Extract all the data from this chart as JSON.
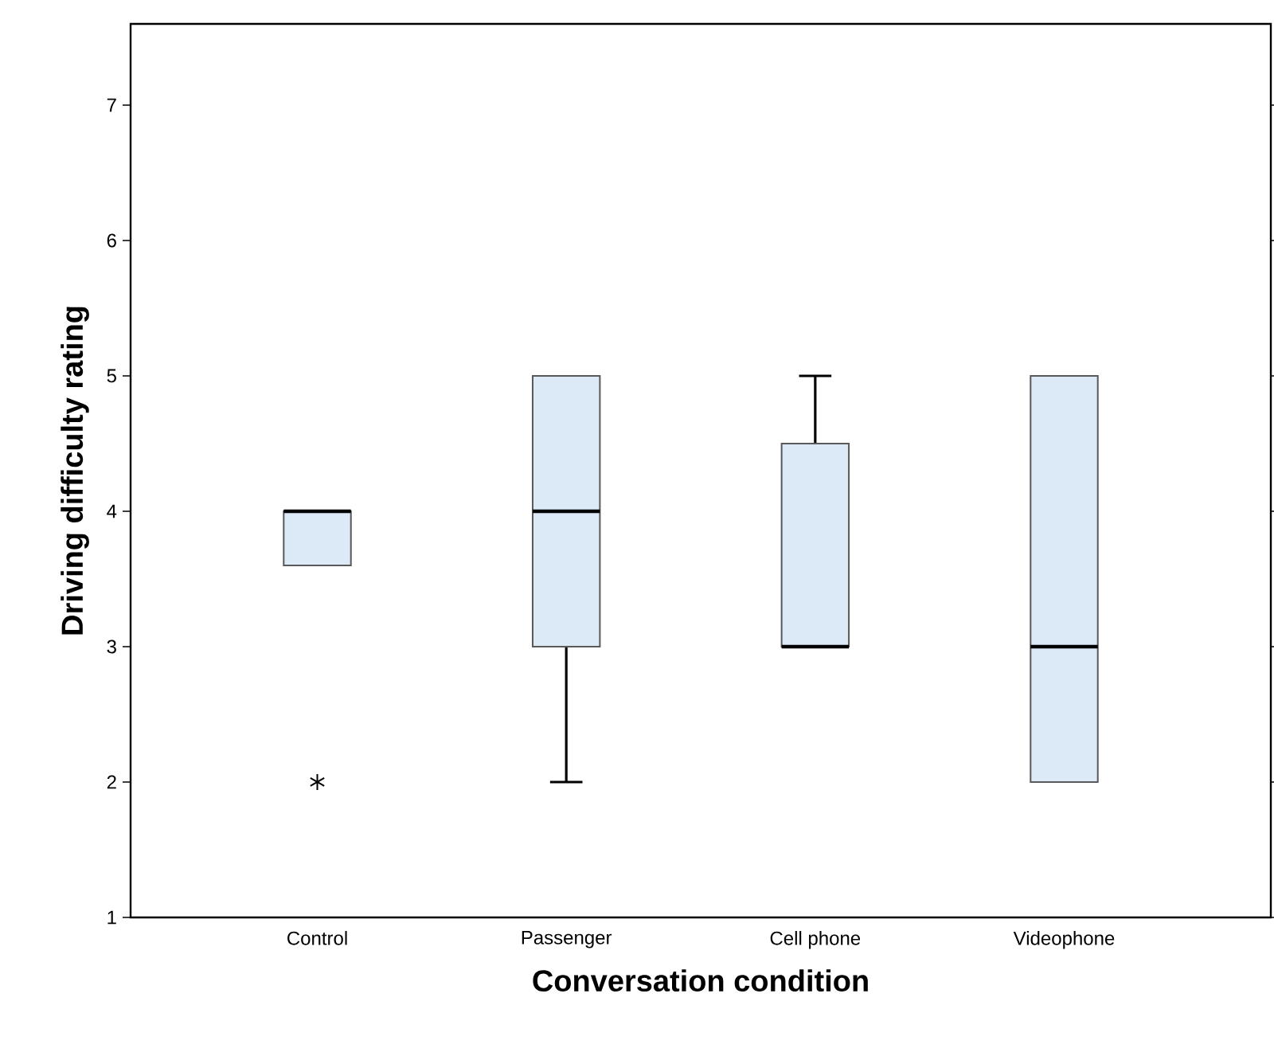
{
  "chart_data": {
    "type": "box",
    "xlabel": "Conversation condition",
    "ylabel": "Driving difficulty rating",
    "categories": [
      "Control",
      "Passenger",
      "Cell phone",
      "Videophone"
    ],
    "boxes": [
      {
        "low": 3.6,
        "q1": 3.6,
        "median": 4,
        "q3": 4,
        "high": 4,
        "outliers": [
          2
        ]
      },
      {
        "low": 2,
        "q1": 3,
        "median": 4,
        "q3": 5,
        "high": 5
      },
      {
        "low": 3,
        "q1": 3,
        "median": 3,
        "q3": 4.5,
        "high": 5
      },
      {
        "low": 2,
        "q1": 2,
        "median": 3,
        "q3": 5,
        "high": 5
      }
    ],
    "color": "#dce9f7",
    "marker": "star",
    "ylim": [
      1,
      7.6
    ],
    "yticks": [
      1,
      2,
      3,
      4,
      5,
      6,
      7
    ]
  }
}
